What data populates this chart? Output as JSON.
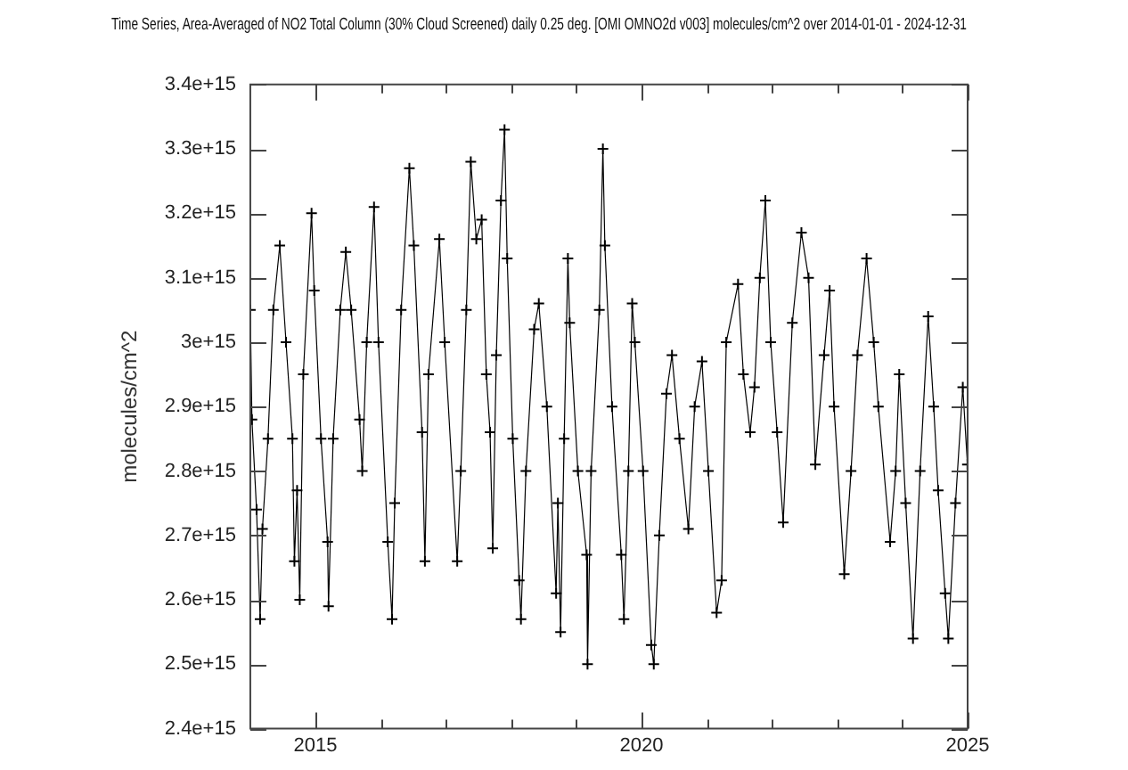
{
  "chart_data": {
    "type": "line",
    "title": "Time Series, Area-Averaged of NO2 Total Column (30% Cloud Screened) daily 0.25 deg. [OMI OMNO2d v003] molecules/cm^2 over 2014-01-01 - 2024-12-31",
    "ylabel": "molecules/cm^2",
    "x": [
      "2014-01-01",
      "2014-01-10",
      "2014-02-05",
      "2014-02-25",
      "2014-03-10",
      "2014-04-10",
      "2014-05-10",
      "2014-06-15",
      "2014-07-20",
      "2014-08-25",
      "2014-09-05",
      "2014-09-20",
      "2014-10-05",
      "2014-10-25",
      "2014-12-10",
      "2014-12-25",
      "2015-02-01",
      "2015-03-10",
      "2015-03-15",
      "2015-04-10",
      "2015-05-20",
      "2015-06-20",
      "2015-07-20",
      "2015-09-05",
      "2015-09-20",
      "2015-10-15",
      "2015-11-25",
      "2015-12-20",
      "2016-02-10",
      "2016-03-05",
      "2016-03-20",
      "2016-04-25",
      "2016-06-10",
      "2016-07-05",
      "2016-08-20",
      "2016-09-05",
      "2016-09-25",
      "2016-11-25",
      "2016-12-25",
      "2017-03-05",
      "2017-03-25",
      "2017-04-25",
      "2017-05-20",
      "2017-06-20",
      "2017-07-20",
      "2017-08-15",
      "2017-09-05",
      "2017-09-20",
      "2017-10-10",
      "2017-11-05",
      "2017-11-25",
      "2017-12-10",
      "2018-01-10",
      "2018-02-15",
      "2018-02-25",
      "2018-03-25",
      "2018-05-10",
      "2018-06-05",
      "2018-07-20",
      "2018-09-10",
      "2018-09-20",
      "2018-10-05",
      "2018-10-25",
      "2018-11-15",
      "2018-11-25",
      "2019-01-10",
      "2019-02-28",
      "2019-03-05",
      "2019-03-25",
      "2019-05-10",
      "2019-05-30",
      "2019-06-10",
      "2019-07-20",
      "2019-09-10",
      "2019-09-25",
      "2019-10-20",
      "2019-11-10",
      "2019-11-25",
      "2020-01-10",
      "2020-02-25",
      "2020-03-10",
      "2020-04-10",
      "2020-05-20",
      "2020-06-20",
      "2020-08-01",
      "2020-09-20",
      "2020-10-25",
      "2020-12-05",
      "2021-01-10",
      "2021-02-25",
      "2021-03-25",
      "2021-04-20",
      "2021-06-25",
      "2021-07-25",
      "2021-09-01",
      "2021-09-25",
      "2021-10-25",
      "2021-11-25",
      "2021-12-25",
      "2022-01-30",
      "2022-03-05",
      "2022-04-25",
      "2022-06-15",
      "2022-07-25",
      "2022-09-01",
      "2022-10-20",
      "2022-11-20",
      "2022-12-15",
      "2023-02-10",
      "2023-03-20",
      "2023-04-25",
      "2023-06-15",
      "2023-07-25",
      "2023-08-20",
      "2023-10-25",
      "2023-11-25",
      "2023-12-15",
      "2024-01-20",
      "2024-03-01",
      "2024-04-10",
      "2024-05-25",
      "2024-06-25",
      "2024-07-20",
      "2024-08-28",
      "2024-09-15",
      "2024-10-25",
      "2024-12-05",
      "2024-12-31"
    ],
    "series": [
      {
        "color": "#000000",
        "values": [
          3050000000000000.0,
          2880000000000000.0,
          2740000000000000.0,
          2570000000000000.0,
          2710000000000000.0,
          2850000000000000.0,
          3050000000000000.0,
          3150000000000000.0,
          3000000000000000.0,
          2850000000000000.0,
          2660000000000000.0,
          2770000000000000.0,
          2600000000000000.0,
          2950000000000000.0,
          3200000000000000.0,
          3080000000000000.0,
          2850000000000000.0,
          2690000000000000.0,
          2590000000000000.0,
          2850000000000000.0,
          3050000000000000.0,
          3140000000000000.0,
          3050000000000000.0,
          2880000000000000.0,
          2800000000000000.0,
          3000000000000000.0,
          3210000000000000.0,
          3000000000000000.0,
          2690000000000000.0,
          2570000000000000.0,
          2750000000000000.0,
          3050000000000000.0,
          3270000000000000.0,
          3150000000000000.0,
          2860000000000000.0,
          2660000000000000.0,
          2950000000000000.0,
          3160000000000000.0,
          3000000000000000.0,
          2660000000000000.0,
          2800000000000000.0,
          3050000000000000.0,
          3280000000000000.0,
          3160000000000000.0,
          3190000000000000.0,
          2950000000000000.0,
          2860000000000000.0,
          2680000000000000.0,
          2980000000000000.0,
          3220000000000000.0,
          3330000000000000.0,
          3130000000000000.0,
          2850000000000000.0,
          2630000000000000.0,
          2570000000000000.0,
          2800000000000000.0,
          3020000000000000.0,
          3060000000000000.0,
          2900000000000000.0,
          2610000000000000.0,
          2750000000000000.0,
          2550000000000000.0,
          2850000000000000.0,
          3130000000000000.0,
          3030000000000000.0,
          2800000000000000.0,
          2670000000000000.0,
          2500000000000000.0,
          2800000000000000.0,
          3050000000000000.0,
          3300000000000000.0,
          3150000000000000.0,
          2900000000000000.0,
          2670000000000000.0,
          2570000000000000.0,
          2800000000000000.0,
          3060000000000000.0,
          3000000000000000.0,
          2800000000000000.0,
          2530000000000000.0,
          2500000000000000.0,
          2700000000000000.0,
          2920000000000000.0,
          2980000000000000.0,
          2850000000000000.0,
          2710000000000000.0,
          2900000000000000.0,
          2970000000000000.0,
          2800000000000000.0,
          2580000000000000.0,
          2630000000000000.0,
          3000000000000000.0,
          3090000000000000.0,
          2950000000000000.0,
          2860000000000000.0,
          2930000000000000.0,
          3100000000000000.0,
          3220000000000000.0,
          3000000000000000.0,
          2860000000000000.0,
          2720000000000000.0,
          3030000000000000.0,
          3170000000000000.0,
          3100000000000000.0,
          2810000000000000.0,
          2980000000000000.0,
          3080000000000000.0,
          2900000000000000.0,
          2640000000000000.0,
          2800000000000000.0,
          2980000000000000.0,
          3130000000000000.0,
          3000000000000000.0,
          2900000000000000.0,
          2690000000000000.0,
          2800000000000000.0,
          2950000000000000.0,
          2750000000000000.0,
          2540000000000000.0,
          2800000000000000.0,
          3040000000000000.0,
          2900000000000000.0,
          2770000000000000.0,
          2610000000000000.0,
          2540000000000000.0,
          2750000000000000.0,
          2930000000000000.0,
          2810000000000000.0
        ]
      }
    ],
    "xlim": [
      "2014-01-01",
      "2025-01-01"
    ],
    "xticks": [
      {
        "value": "2015",
        "label": "2015"
      },
      {
        "value": "2016",
        "label": null
      },
      {
        "value": "2017",
        "label": null
      },
      {
        "value": "2018",
        "label": null
      },
      {
        "value": "2019",
        "label": null
      },
      {
        "value": "2020",
        "label": "2020"
      },
      {
        "value": "2021",
        "label": null
      },
      {
        "value": "2022",
        "label": null
      },
      {
        "value": "2023",
        "label": null
      },
      {
        "value": "2024",
        "label": null
      },
      {
        "value": "2025",
        "label": "2025"
      }
    ],
    "ylim": [
      2400000000000000.0,
      3400000000000000.0
    ],
    "yticks": [
      {
        "value": 2400000000000000.0,
        "label": "2.4e+15"
      },
      {
        "value": 2500000000000000.0,
        "label": "2.5e+15"
      },
      {
        "value": 2600000000000000.0,
        "label": "2.6e+15"
      },
      {
        "value": 2700000000000000.0,
        "label": "2.7e+15"
      },
      {
        "value": 2800000000000000.0,
        "label": "2.8e+15"
      },
      {
        "value": 2900000000000000.0,
        "label": "2.9e+15"
      },
      {
        "value": 3000000000000000.0,
        "label": "3e+15"
      },
      {
        "value": 3100000000000000.0,
        "label": "3.1e+15"
      },
      {
        "value": 3200000000000000.0,
        "label": "3.2e+15"
      },
      {
        "value": 3300000000000000.0,
        "label": "3.3e+15"
      },
      {
        "value": 3400000000000000.0,
        "label": "3.4e+15"
      }
    ],
    "grid": false,
    "legend": false,
    "marker": "cross",
    "line_style": "solid"
  }
}
